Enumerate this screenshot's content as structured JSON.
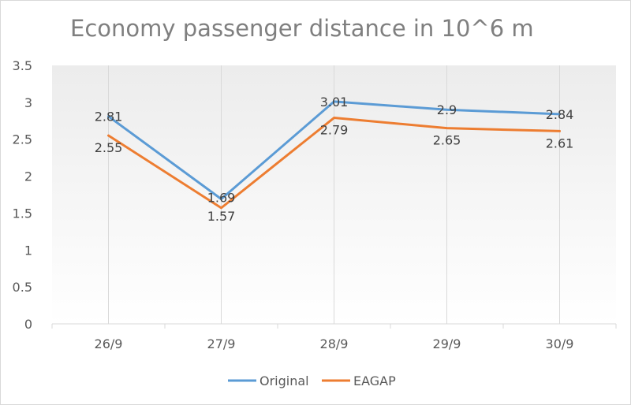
{
  "chart_data": {
    "type": "line",
    "title": "Economy passenger distance in 10^6 m",
    "categories": [
      "26/9",
      "27/9",
      "28/9",
      "29/9",
      "30/9"
    ],
    "series": [
      {
        "name": "Original",
        "values": [
          2.81,
          1.69,
          3.01,
          2.9,
          2.84
        ],
        "color": "#5b9bd5"
      },
      {
        "name": "EAGAP",
        "values": [
          2.55,
          1.57,
          2.79,
          2.65,
          2.61
        ],
        "color": "#ed7d31"
      }
    ],
    "y_ticks": [
      "0",
      "0.5",
      "1",
      "1.5",
      "2",
      "2.5",
      "3",
      "3.5"
    ],
    "ylim": [
      0,
      3.5
    ],
    "data_labels": true,
    "grid": "vertical",
    "legend_position": "bottom"
  }
}
